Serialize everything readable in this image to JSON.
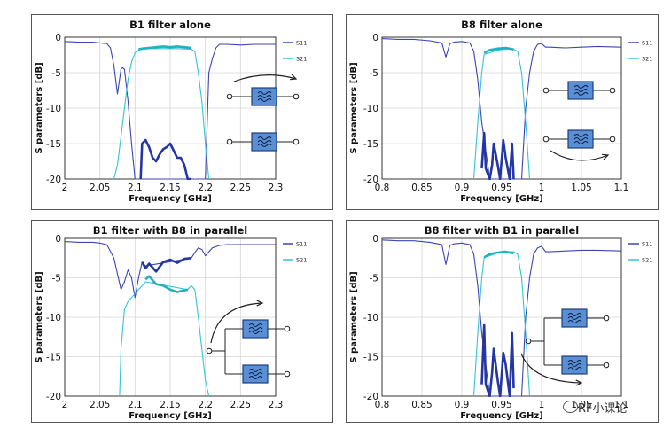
{
  "colors": {
    "s11": "#3b45b5",
    "s21": "#35c3d6",
    "s11_thick": "#2436a3",
    "s21_thick": "#1fb3bf",
    "filter_box": "#5a8fd6"
  },
  "chart_data": [
    {
      "type": "line",
      "title": "B1 filter alone",
      "xlabel": "Frequency [GHz]",
      "ylabel": "S parameters [dB]",
      "xlim": [
        2,
        2.3
      ],
      "ylim": [
        -20,
        0
      ],
      "xticks": [
        "2",
        "2.05",
        "2.1",
        "2.15",
        "2.2",
        "2.25",
        "2.3"
      ],
      "yticks": [
        "0",
        "-5",
        "-10",
        "-15",
        "-20"
      ],
      "legend": [
        "S11",
        "S21"
      ],
      "grid": true,
      "diagram": "two-filters-top-arrow",
      "series": [
        {
          "name": "S11",
          "x": [
            2.0,
            2.02,
            2.04,
            2.05,
            2.06,
            2.065,
            2.07,
            2.075,
            2.08,
            2.082,
            2.085,
            2.09,
            2.095,
            2.1,
            2.105,
            2.108,
            2.2,
            2.205,
            2.21,
            2.215,
            2.22,
            2.23,
            2.25,
            2.27,
            2.3
          ],
          "y": [
            -0.6,
            -0.7,
            -0.7,
            -0.8,
            -0.9,
            -1.5,
            -4,
            -8,
            -4.5,
            -4.3,
            -4.5,
            -9,
            -15,
            -20,
            -20,
            -20,
            -20,
            -5,
            -3,
            -1.5,
            -1.0,
            -1.0,
            -1.1,
            -1.0,
            -1.0
          ]
        },
        {
          "name": "S21",
          "x": [
            2.07,
            2.075,
            2.08,
            2.085,
            2.09,
            2.095,
            2.1,
            2.105,
            2.11,
            2.12,
            2.14,
            2.16,
            2.18,
            2.185,
            2.19,
            2.195,
            2.2,
            2.205
          ],
          "y": [
            -20,
            -18,
            -14,
            -10,
            -6,
            -3.5,
            -2.2,
            -1.8,
            -1.7,
            -1.6,
            -1.6,
            -1.6,
            -1.7,
            -2.0,
            -5,
            -9,
            -15,
            -20
          ]
        },
        {
          "name": "S11-passband",
          "x": [
            2.108,
            2.11,
            2.115,
            2.12,
            2.125,
            2.13,
            2.135,
            2.14,
            2.145,
            2.15,
            2.155,
            2.16,
            2.165,
            2.17,
            2.175,
            2.18
          ],
          "y": [
            -20,
            -15,
            -14.5,
            -15.5,
            -17,
            -17.5,
            -16.5,
            -15.8,
            -15.5,
            -15,
            -16,
            -17,
            -17,
            -18,
            -20,
            -20
          ]
        },
        {
          "name": "S21-passband",
          "x": [
            2.105,
            2.11,
            2.12,
            2.13,
            2.14,
            2.15,
            2.16,
            2.17,
            2.18
          ],
          "y": [
            -1.7,
            -1.6,
            -1.5,
            -1.4,
            -1.3,
            -1.4,
            -1.3,
            -1.4,
            -1.5
          ]
        }
      ]
    },
    {
      "type": "line",
      "title": "B8 filter alone",
      "xlabel": "Frequency [GHz]",
      "ylabel": "S parameters [dB]",
      "xlim": [
        0.8,
        1.1
      ],
      "ylim": [
        -20,
        0
      ],
      "xticks": [
        "0.8",
        "0.85",
        "0.9",
        "0.95",
        "1",
        "1.05",
        "1.1"
      ],
      "yticks": [
        "0",
        "-5",
        "-10",
        "-15",
        "-20"
      ],
      "legend": [
        "S11",
        "S21"
      ],
      "grid": true,
      "diagram": "two-filters-bottom-arrow",
      "series": [
        {
          "name": "S11",
          "x": [
            0.8,
            0.82,
            0.84,
            0.86,
            0.875,
            0.88,
            0.885,
            0.89,
            0.9,
            0.91,
            0.915,
            0.92,
            0.925,
            0.935,
            0.975,
            0.98,
            0.985,
            0.99,
            0.995,
            1.0,
            1.005,
            1.01,
            1.03,
            1.05,
            1.07,
            1.1
          ],
          "y": [
            -0.2,
            -0.3,
            -0.3,
            -0.5,
            -0.8,
            -2.8,
            -0.9,
            -0.7,
            -0.6,
            -0.8,
            -2,
            -6,
            -12,
            -20,
            -20,
            -10,
            -5,
            -2,
            -1.0,
            -0.9,
            -1.4,
            -1.4,
            -1.5,
            -1.4,
            -1.3,
            -1.4
          ]
        },
        {
          "name": "S21",
          "x": [
            0.915,
            0.92,
            0.925,
            0.928,
            0.935,
            0.945,
            0.955,
            0.965,
            0.97,
            0.975,
            0.98,
            0.985
          ],
          "y": [
            -20,
            -12,
            -5,
            -2.4,
            -2.2,
            -1.8,
            -1.7,
            -1.7,
            -2.0,
            -5,
            -12,
            -20
          ]
        },
        {
          "name": "S11-passband",
          "x": [
            0.925,
            0.928,
            0.93,
            0.935,
            0.938,
            0.94,
            0.945,
            0.948,
            0.952,
            0.955,
            0.96,
            0.963,
            0.965
          ],
          "y": [
            -18.5,
            -13.5,
            -18.5,
            -20,
            -18,
            -15,
            -18,
            -20,
            -14.5,
            -17,
            -20,
            -15,
            -20
          ]
        },
        {
          "name": "S21-passband",
          "x": [
            0.928,
            0.935,
            0.945,
            0.955,
            0.965
          ],
          "y": [
            -2.2,
            -1.8,
            -1.6,
            -1.5,
            -1.7
          ]
        }
      ]
    },
    {
      "type": "line",
      "title": "B1 filter with B8 in parallel",
      "xlabel": "Frequency [GHz]",
      "ylabel": "S parameters [dB]",
      "xlim": [
        2,
        2.3
      ],
      "ylim": [
        -20,
        0
      ],
      "xticks": [
        "2",
        "2.05",
        "2.1",
        "2.15",
        "2.2",
        "2.25",
        "2.3"
      ],
      "yticks": [
        "0",
        "-5",
        "-10",
        "-15",
        "-20"
      ],
      "legend": [
        "S11",
        "S21"
      ],
      "grid": true,
      "diagram": "parallel-filters-top-arrow",
      "series": [
        {
          "name": "S11",
          "x": [
            2.0,
            2.02,
            2.04,
            2.05,
            2.06,
            2.07,
            2.075,
            2.08,
            2.085,
            2.09,
            2.095,
            2.1,
            2.105,
            2.11,
            2.115,
            2.18,
            2.185,
            2.19,
            2.195,
            2.2,
            2.21,
            2.22,
            2.23,
            2.25,
            2.3
          ],
          "y": [
            -0.4,
            -0.5,
            -0.5,
            -0.6,
            -0.8,
            -2.5,
            -4.5,
            -6.5,
            -5.5,
            -4,
            -5,
            -7.5,
            -5,
            -3,
            -3.5,
            -2.5,
            -1.8,
            -1.2,
            -1.4,
            -2.2,
            -1.2,
            -0.9,
            -0.8,
            -0.8,
            -0.8
          ]
        },
        {
          "name": "S21",
          "x": [
            2.078,
            2.08,
            2.085,
            2.09,
            2.095,
            2.1,
            2.105,
            2.11,
            2.115,
            2.175,
            2.18,
            2.185,
            2.19,
            2.195,
            2.2,
            2.205
          ],
          "y": [
            -20,
            -14,
            -9,
            -8,
            -7.5,
            -7,
            -6.5,
            -6,
            -5.5,
            -6.5,
            -6.0,
            -6.5,
            -10,
            -14,
            -18,
            -20
          ]
        },
        {
          "name": "S11-passband",
          "x": [
            2.11,
            2.115,
            2.12,
            2.13,
            2.14,
            2.15,
            2.16,
            2.17,
            2.18
          ],
          "y": [
            -3,
            -3.8,
            -3.2,
            -4.2,
            -3.0,
            -2.7,
            -3.1,
            -2.6,
            -2.5
          ]
        },
        {
          "name": "S21-passband",
          "x": [
            2.115,
            2.12,
            2.13,
            2.14,
            2.15,
            2.16,
            2.17,
            2.175
          ],
          "y": [
            -5.2,
            -4.8,
            -5.8,
            -6.0,
            -6.5,
            -6.8,
            -6.6,
            -6.5
          ]
        }
      ]
    },
    {
      "type": "line",
      "title": "B8 filter with B1 in parallel",
      "xlabel": "Frequency [GHz]",
      "ylabel": "S parameters [dB]",
      "xlim": [
        0.8,
        1.1
      ],
      "ylim": [
        -20,
        0
      ],
      "xticks": [
        "0.8",
        "0.85",
        "0.9",
        "0.95",
        "1",
        "1.05",
        "1.1"
      ],
      "yticks": [
        "0",
        "-5",
        "-10",
        "-15",
        "-20"
      ],
      "legend": [
        "S11",
        "S21"
      ],
      "grid": true,
      "diagram": "parallel-filters-bottom-arrow",
      "series": [
        {
          "name": "S11",
          "x": [
            0.8,
            0.82,
            0.84,
            0.86,
            0.875,
            0.88,
            0.885,
            0.89,
            0.9,
            0.91,
            0.915,
            0.92,
            0.925,
            0.935,
            0.975,
            0.98,
            0.985,
            0.99,
            0.995,
            1.0,
            1.005,
            1.01,
            1.03,
            1.05,
            1.07,
            1.1
          ],
          "y": [
            -0.2,
            -0.3,
            -0.3,
            -0.5,
            -0.8,
            -3.3,
            -0.9,
            -0.7,
            -0.6,
            -0.8,
            -2,
            -6,
            -12,
            -20,
            -20,
            -10,
            -5,
            -2,
            -1.2,
            -1.0,
            -1.7,
            -1.7,
            -1.6,
            -1.5,
            -1.5,
            -1.6
          ]
        },
        {
          "name": "S21",
          "x": [
            0.915,
            0.92,
            0.925,
            0.928,
            0.935,
            0.945,
            0.955,
            0.965,
            0.97,
            0.975,
            0.98,
            0.985
          ],
          "y": [
            -20,
            -12,
            -5,
            -2.4,
            -2.2,
            -1.8,
            -1.7,
            -1.7,
            -2.0,
            -5,
            -12,
            -20
          ]
        },
        {
          "name": "S11-passband",
          "x": [
            0.925,
            0.928,
            0.93,
            0.935,
            0.938,
            0.94,
            0.945,
            0.948,
            0.952,
            0.955,
            0.96,
            0.963,
            0.965
          ],
          "y": [
            -18.5,
            -11,
            -18.5,
            -20,
            -17,
            -14,
            -18,
            -20,
            -14.5,
            -16,
            -20,
            -12,
            -19
          ]
        },
        {
          "name": "S21-passband",
          "x": [
            0.928,
            0.935,
            0.945,
            0.955,
            0.965
          ],
          "y": [
            -2.4,
            -2.0,
            -1.8,
            -1.7,
            -1.9
          ]
        }
      ]
    }
  ],
  "watermark": "RF小课论"
}
